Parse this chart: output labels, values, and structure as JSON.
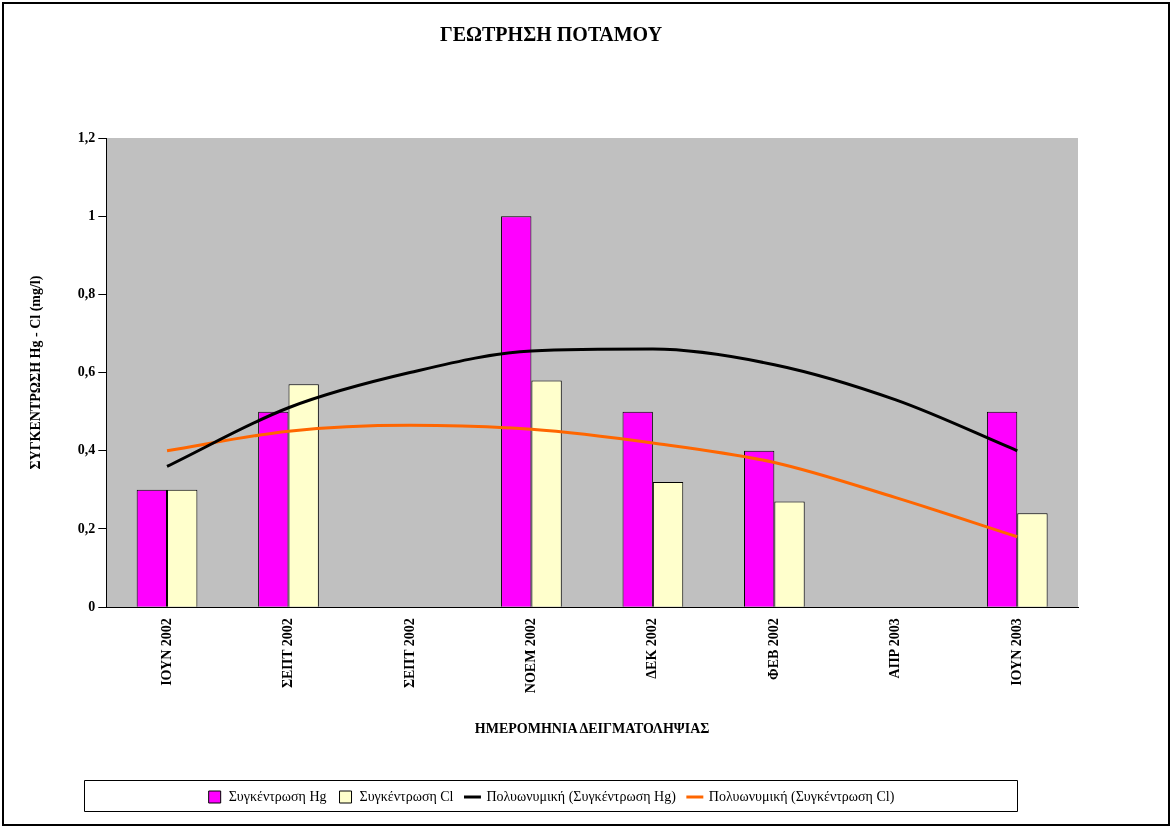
{
  "chart_data": {
    "type": "bar",
    "title": "ΓΕΩΤΡΗΣΗ ΠΟΤΑΜΟΥ",
    "xlabel": "ΗΜΕΡΟΜΗΝΙΑ ΔΕΙΓΜΑΤΟΛΗΨΙΑΣ",
    "ylabel": "ΣΥΓΚΕΝΤΡΩΣΗ Hg - Cl (mg/l)",
    "categories": [
      "ΙΟΥΝ 2002",
      "ΣΕΠΤ 2002",
      "ΣΕΠΤ 2002",
      "ΝΟΕΜ 2002",
      "ΔΕΚ 2002",
      "ΦΕΒ 2002",
      "ΑΠΡ 2003",
      "ΙΟΥΝ 2003"
    ],
    "series": [
      {
        "name": "Συγκέντρωση Hg",
        "color": "#ff00ff",
        "values": [
          0.3,
          0.5,
          null,
          1.0,
          0.5,
          0.4,
          null,
          0.5
        ]
      },
      {
        "name": "Συγκέντρωση Cl",
        "color": "#ffffcc",
        "values": [
          0.3,
          0.57,
          null,
          0.58,
          0.32,
          0.27,
          null,
          0.24
        ]
      },
      {
        "name": "Πολυωνυμική (Συγκέντρωση Hg)",
        "type": "line",
        "color": "#000000",
        "values": [
          0.36,
          0.51,
          0.6,
          0.655,
          0.66,
          0.62,
          0.53,
          0.4
        ]
      },
      {
        "name": "Πολυωνυμική (Συγκέντρωση Cl)",
        "type": "line",
        "color": "#ff6600",
        "values": [
          0.4,
          0.45,
          0.465,
          0.455,
          0.42,
          0.37,
          0.28,
          0.18
        ]
      }
    ],
    "ylim": [
      0,
      1.2
    ],
    "yticks": [
      {
        "value": 0,
        "label": "0"
      },
      {
        "value": 0.2,
        "label": "0,2"
      },
      {
        "value": 0.4,
        "label": "0,4"
      },
      {
        "value": 0.6,
        "label": "0,6"
      },
      {
        "value": 0.8,
        "label": "0,8"
      },
      {
        "value": 1,
        "label": "1"
      },
      {
        "value": 1.2,
        "label": "1,2"
      }
    ],
    "grid": false,
    "legend": "bottom",
    "marker": "none",
    "line_style": "solid"
  }
}
